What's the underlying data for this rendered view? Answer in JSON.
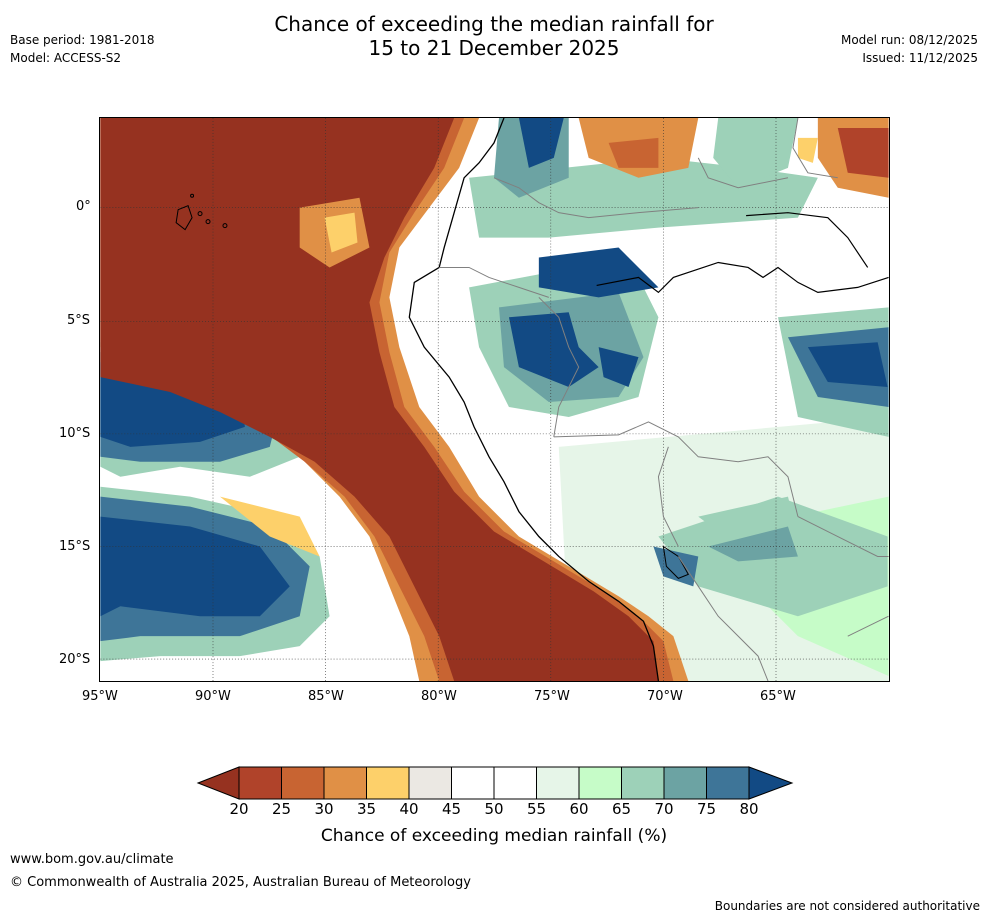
{
  "header": {
    "title_line1": "Chance of exceeding the median rainfall for",
    "title_line2": "15 to 21 December 2025",
    "base_period": "Base period: 1981-2018",
    "model": "Model: ACCESS-S2",
    "model_run": "Model run: 08/12/2025",
    "issued": "Issued: 11/12/2025"
  },
  "map": {
    "lat_labels": [
      "0°",
      "5°S",
      "10°S",
      "15°S",
      "20°S"
    ],
    "lon_labels": [
      "95°W",
      "90°W",
      "85°W",
      "80°W",
      "75°W",
      "70°W",
      "65°W"
    ],
    "colors": {
      "c20": "#963220",
      "c25": "#b0432a",
      "c30": "#c86432",
      "c35": "#e09046",
      "c40": "#fdd06a",
      "c45": "#ebe8e3",
      "c50": "#ffffff",
      "c55": "#ffffff",
      "c60": "#e6f5e8",
      "c65": "#c6fcc8",
      "c70": "#9dd1b8",
      "c75": "#6ca3a3",
      "c80": "#3e7598",
      "c85": "#124a84"
    }
  },
  "colorbar": {
    "ticks": [
      "20",
      "25",
      "30",
      "35",
      "40",
      "45",
      "50",
      "55",
      "60",
      "65",
      "70",
      "75",
      "80"
    ],
    "title": "Chance of exceeding median rainfall (%)"
  },
  "footer": {
    "url": "www.bom.gov.au/climate",
    "copyright": "© Commonwealth of Australia 2025, Australian Bureau of Meteorology",
    "disclaimer": "Boundaries are not considered authoritative"
  }
}
